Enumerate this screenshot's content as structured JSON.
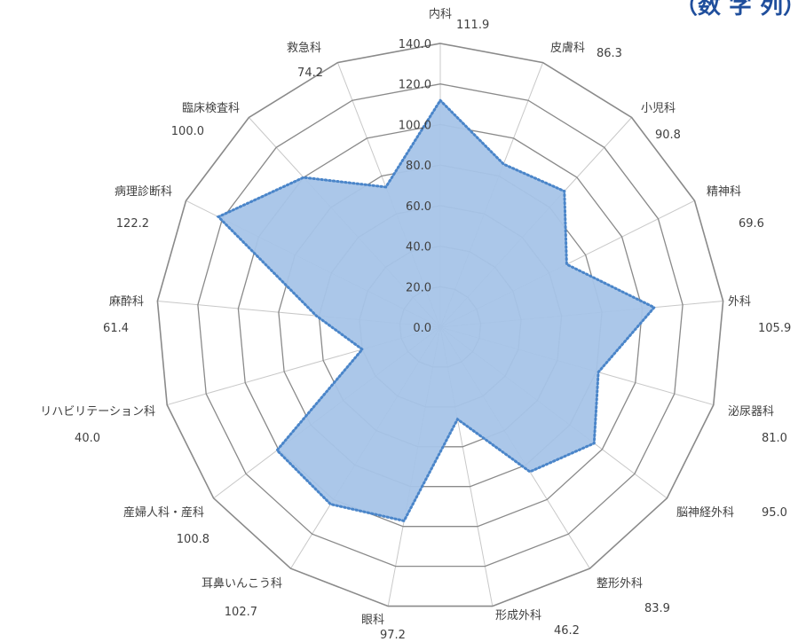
{
  "corner_text": "（数 字 列）",
  "colors": {
    "fill": "#a6c4e8",
    "outline": "#4a85c9",
    "grid": "#8a8a8a",
    "spoke": "#c8c8c8",
    "text": "#404040"
  },
  "chart_data": {
    "type": "radar",
    "rmin": 0,
    "rmax": 140,
    "ticks": [
      "0.0",
      "20.0",
      "40.0",
      "60.0",
      "80.0",
      "100.0",
      "120.0",
      "140.0"
    ],
    "categories": [
      "内科",
      "皮膚科",
      "小児科",
      "精神科",
      "外科",
      "泌尿器科",
      "脳神経外科",
      "整形外科",
      "形成外科",
      "眼科",
      "耳鼻いんこう科",
      "産婦人科・産科",
      "リハビリテーション科",
      "麻酔科",
      "病理診断科",
      "臨床検査科",
      "救急科"
    ],
    "values": [
      111.9,
      86.3,
      90.8,
      69.6,
      105.9,
      81.0,
      95.0,
      83.9,
      46.2,
      97.2,
      102.7,
      100.8,
      40.0,
      61.4,
      122.2,
      100.0,
      74.2
    ],
    "value_labels": [
      "111.9",
      "86.3",
      "90.8",
      "69.6",
      "105.9",
      "81.0",
      "95.0",
      "83.9",
      "46.2",
      "97.2",
      "102.7",
      "100.8",
      "40.0",
      "61.4",
      "122.2",
      "100.0",
      "74.2"
    ]
  }
}
